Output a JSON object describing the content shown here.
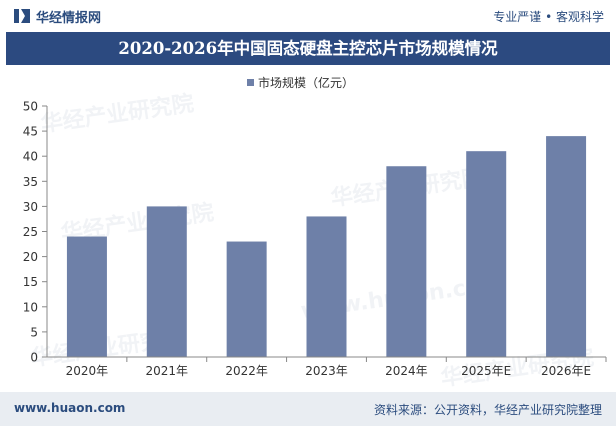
{
  "header": {
    "brand": "华经情报网",
    "slogan": "专业严谨 • 客观科学"
  },
  "title": "2020-2026年中国固态硬盘主控芯片市场规模情况",
  "footer": {
    "url": "www.huaon.com",
    "source": "资料来源：公开资料，华经产业研究院整理"
  },
  "watermarks": [
    "华经产业研究院",
    "华经产业研究院",
    "华经产业研究院",
    "华经产业研究院",
    "华经产业研究院",
    "www.huaon.com"
  ],
  "colors": {
    "bar": "#6e80a8",
    "title_bg": "#2c4a80",
    "brand": "#2b4c7e"
  },
  "chart_data": {
    "type": "bar",
    "categories": [
      "2020年",
      "2021年",
      "2022年",
      "2023年",
      "2024年",
      "2025年E",
      "2026年E"
    ],
    "series": [
      {
        "name": "市场规模（亿元）",
        "values": [
          24,
          30,
          23,
          28,
          38,
          41,
          44
        ]
      }
    ],
    "ylim": [
      0,
      50
    ],
    "yticks": [
      0,
      5,
      10,
      15,
      20,
      25,
      30,
      35,
      40,
      45,
      50
    ],
    "legend_position": "top-center",
    "grid": false
  }
}
